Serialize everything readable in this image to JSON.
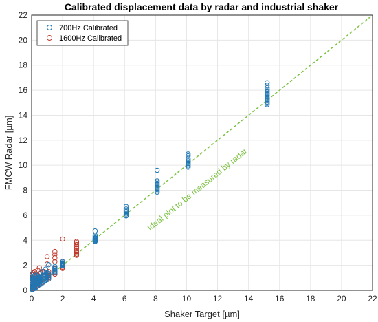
{
  "chart_data": {
    "type": "scatter",
    "title": "Calibrated displacement data by radar and industrial shaker",
    "xlabel": "Shaker Target [µm]",
    "ylabel": "FMCW Radar [µm]",
    "xlim": [
      0,
      22
    ],
    "ylim": [
      0,
      22
    ],
    "xticks": [
      "0",
      "2",
      "4",
      "6",
      "8",
      "10",
      "12",
      "14",
      "16",
      "18",
      "20",
      "22"
    ],
    "yticks": [
      "0",
      "2",
      "4",
      "6",
      "8",
      "10",
      "12",
      "14",
      "16",
      "18",
      "20",
      "22"
    ],
    "grid": true,
    "legend_position": "top-left",
    "series": [
      {
        "name": "700Hz Calibrated",
        "color": "#1f77b4",
        "marker": "open-circle",
        "points": [
          [
            0.05,
            0.05
          ],
          [
            0.05,
            0.1
          ],
          [
            0.05,
            0.2
          ],
          [
            0.05,
            0.35
          ],
          [
            0.05,
            0.5
          ],
          [
            0.05,
            0.7
          ],
          [
            0.05,
            0.9
          ],
          [
            0.05,
            1.1
          ],
          [
            0.05,
            1.3
          ],
          [
            0.1,
            0.1
          ],
          [
            0.1,
            0.25
          ],
          [
            0.1,
            0.4
          ],
          [
            0.1,
            0.6
          ],
          [
            0.1,
            0.85
          ],
          [
            0.1,
            1.0
          ],
          [
            0.2,
            0.15
          ],
          [
            0.2,
            0.3
          ],
          [
            0.2,
            0.5
          ],
          [
            0.2,
            0.7
          ],
          [
            0.2,
            0.9
          ],
          [
            0.2,
            1.2
          ],
          [
            0.3,
            0.25
          ],
          [
            0.3,
            0.45
          ],
          [
            0.3,
            0.6
          ],
          [
            0.3,
            0.8
          ],
          [
            0.3,
            1.0
          ],
          [
            0.4,
            0.35
          ],
          [
            0.4,
            0.55
          ],
          [
            0.4,
            0.75
          ],
          [
            0.4,
            0.95
          ],
          [
            0.4,
            1.15
          ],
          [
            0.5,
            0.45
          ],
          [
            0.5,
            0.6
          ],
          [
            0.5,
            0.8
          ],
          [
            0.5,
            1.0
          ],
          [
            0.5,
            1.3
          ],
          [
            0.6,
            0.5
          ],
          [
            0.6,
            0.7
          ],
          [
            0.6,
            0.9
          ],
          [
            0.6,
            1.1
          ],
          [
            0.7,
            0.6
          ],
          [
            0.7,
            0.8
          ],
          [
            0.7,
            1.0
          ],
          [
            0.7,
            1.2
          ],
          [
            0.7,
            1.5
          ],
          [
            0.8,
            0.7
          ],
          [
            0.8,
            0.9
          ],
          [
            0.8,
            1.1
          ],
          [
            0.8,
            1.3
          ],
          [
            0.9,
            0.8
          ],
          [
            0.9,
            1.0
          ],
          [
            0.9,
            1.2
          ],
          [
            0.9,
            1.7
          ],
          [
            1.0,
            0.85
          ],
          [
            1.0,
            1.0
          ],
          [
            1.0,
            1.1
          ],
          [
            1.0,
            1.25
          ],
          [
            1.0,
            1.4
          ],
          [
            1.1,
            0.9
          ],
          [
            1.1,
            1.05
          ],
          [
            1.1,
            1.2
          ],
          [
            1.1,
            1.35
          ],
          [
            1.1,
            2.05
          ],
          [
            1.5,
            1.4
          ],
          [
            1.5,
            1.5
          ],
          [
            1.5,
            1.6
          ],
          [
            1.5,
            1.7
          ],
          [
            1.5,
            1.8
          ],
          [
            1.5,
            1.9
          ],
          [
            2.0,
            1.95
          ],
          [
            2.0,
            2.0
          ],
          [
            2.0,
            2.05
          ],
          [
            2.0,
            2.1
          ],
          [
            2.0,
            2.15
          ],
          [
            2.0,
            2.2
          ],
          [
            2.0,
            2.3
          ],
          [
            4.1,
            3.9
          ],
          [
            4.1,
            3.95
          ],
          [
            4.1,
            4.0
          ],
          [
            4.1,
            4.05
          ],
          [
            4.1,
            4.1
          ],
          [
            4.1,
            4.15
          ],
          [
            4.1,
            4.2
          ],
          [
            4.1,
            4.3
          ],
          [
            4.1,
            4.4
          ],
          [
            4.1,
            4.75
          ],
          [
            6.1,
            5.95
          ],
          [
            6.1,
            6.0
          ],
          [
            6.1,
            6.1
          ],
          [
            6.1,
            6.2
          ],
          [
            6.1,
            6.3
          ],
          [
            6.1,
            6.4
          ],
          [
            6.1,
            6.5
          ],
          [
            6.1,
            6.7
          ],
          [
            8.1,
            7.85
          ],
          [
            8.1,
            7.95
          ],
          [
            8.1,
            8.05
          ],
          [
            8.1,
            8.15
          ],
          [
            8.1,
            8.25
          ],
          [
            8.1,
            8.35
          ],
          [
            8.1,
            8.45
          ],
          [
            8.1,
            8.55
          ],
          [
            8.1,
            8.65
          ],
          [
            8.1,
            8.75
          ],
          [
            8.1,
            9.6
          ],
          [
            10.1,
            9.85
          ],
          [
            10.1,
            9.95
          ],
          [
            10.1,
            10.05
          ],
          [
            10.1,
            10.15
          ],
          [
            10.1,
            10.25
          ],
          [
            10.1,
            10.35
          ],
          [
            10.1,
            10.45
          ],
          [
            10.1,
            10.55
          ],
          [
            10.1,
            10.75
          ],
          [
            10.1,
            10.9
          ],
          [
            15.2,
            14.85
          ],
          [
            15.2,
            14.95
          ],
          [
            15.2,
            15.05
          ],
          [
            15.2,
            15.15
          ],
          [
            15.2,
            15.25
          ],
          [
            15.2,
            15.35
          ],
          [
            15.2,
            15.45
          ],
          [
            15.2,
            15.55
          ],
          [
            15.2,
            15.65
          ],
          [
            15.2,
            15.75
          ],
          [
            15.2,
            15.85
          ],
          [
            15.2,
            15.95
          ],
          [
            15.2,
            16.05
          ],
          [
            15.2,
            16.2
          ],
          [
            15.2,
            16.4
          ],
          [
            15.2,
            16.6
          ]
        ]
      },
      {
        "name": "1600Hz Calibrated",
        "color": "#c0392b",
        "marker": "open-circle",
        "points": [
          [
            0.05,
            0.05
          ],
          [
            0.05,
            0.15
          ],
          [
            0.05,
            0.3
          ],
          [
            0.05,
            0.5
          ],
          [
            0.05,
            0.75
          ],
          [
            0.05,
            1.0
          ],
          [
            0.05,
            1.25
          ],
          [
            0.1,
            0.1
          ],
          [
            0.1,
            0.2
          ],
          [
            0.1,
            0.4
          ],
          [
            0.1,
            0.6
          ],
          [
            0.1,
            0.85
          ],
          [
            0.1,
            1.4
          ],
          [
            0.2,
            0.2
          ],
          [
            0.2,
            0.35
          ],
          [
            0.2,
            0.55
          ],
          [
            0.2,
            0.8
          ],
          [
            0.2,
            1.1
          ],
          [
            0.2,
            1.5
          ],
          [
            0.3,
            0.3
          ],
          [
            0.3,
            0.5
          ],
          [
            0.3,
            0.7
          ],
          [
            0.3,
            1.0
          ],
          [
            0.3,
            1.3
          ],
          [
            0.4,
            0.4
          ],
          [
            0.4,
            0.6
          ],
          [
            0.4,
            0.9
          ],
          [
            0.4,
            1.2
          ],
          [
            0.4,
            1.6
          ],
          [
            0.5,
            0.5
          ],
          [
            0.5,
            0.7
          ],
          [
            0.5,
            1.0
          ],
          [
            0.5,
            1.3
          ],
          [
            0.5,
            1.8
          ],
          [
            0.6,
            0.6
          ],
          [
            0.6,
            0.8
          ],
          [
            0.6,
            1.1
          ],
          [
            0.6,
            1.4
          ],
          [
            0.8,
            0.7
          ],
          [
            0.8,
            0.95
          ],
          [
            0.8,
            1.2
          ],
          [
            0.8,
            1.5
          ],
          [
            1.0,
            0.9
          ],
          [
            1.0,
            1.05
          ],
          [
            1.0,
            1.2
          ],
          [
            1.0,
            1.4
          ],
          [
            1.0,
            2.1
          ],
          [
            1.0,
            2.7
          ],
          [
            1.1,
            1.0
          ],
          [
            1.1,
            1.15
          ],
          [
            1.1,
            1.3
          ],
          [
            1.1,
            1.5
          ],
          [
            1.5,
            1.3
          ],
          [
            1.5,
            1.45
          ],
          [
            1.5,
            1.6
          ],
          [
            1.5,
            1.75
          ],
          [
            1.5,
            2.3
          ],
          [
            1.5,
            2.6
          ],
          [
            1.5,
            2.85
          ],
          [
            1.5,
            3.1
          ],
          [
            2.0,
            1.75
          ],
          [
            2.0,
            1.85
          ],
          [
            2.0,
            1.95
          ],
          [
            2.0,
            2.05
          ],
          [
            2.0,
            2.15
          ],
          [
            2.0,
            2.3
          ],
          [
            2.0,
            4.1
          ],
          [
            2.9,
            2.8
          ],
          [
            2.9,
            2.9
          ],
          [
            2.9,
            3.0
          ],
          [
            2.9,
            3.1
          ],
          [
            2.9,
            3.2
          ],
          [
            2.9,
            3.35
          ],
          [
            2.9,
            3.5
          ],
          [
            2.9,
            3.65
          ],
          [
            2.9,
            3.8
          ],
          [
            2.9,
            3.9
          ]
        ]
      }
    ],
    "annotations": [
      {
        "text": "Ideal plot to be measured by radar",
        "color": "#7cc242",
        "line": {
          "x": [
            0,
            22
          ],
          "y": [
            0,
            22
          ],
          "style": "dashed"
        }
      }
    ]
  }
}
